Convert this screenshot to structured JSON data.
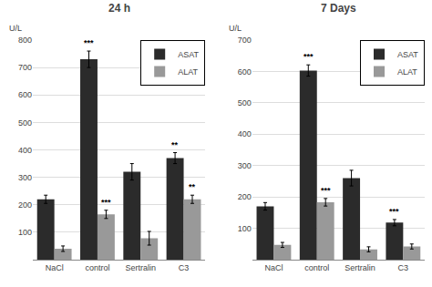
{
  "chart_data": [
    {
      "type": "bar",
      "title": "24 h",
      "ylabel": "U/L",
      "categories": [
        "NaCl",
        "control",
        "Sertralin",
        "C3"
      ],
      "series": [
        {
          "name": "ASAT",
          "color": "#2b2b2b",
          "values": [
            220,
            730,
            320,
            370
          ],
          "errors": [
            15,
            30,
            30,
            20
          ]
        },
        {
          "name": "ALAT",
          "color": "#999999",
          "values": [
            40,
            165,
            78,
            220
          ],
          "errors": [
            10,
            15,
            25,
            15
          ]
        }
      ],
      "annotations": [
        {
          "category": "control",
          "series": "ASAT",
          "text": "***"
        },
        {
          "category": "C3",
          "series": "ASAT",
          "text": "**"
        },
        {
          "category": "control",
          "series": "ALAT",
          "text": "***"
        },
        {
          "category": "C3",
          "series": "ALAT",
          "text": "**"
        }
      ],
      "ylim": [
        0,
        800
      ],
      "yticks": [
        100,
        200,
        300,
        400,
        500,
        600,
        700,
        800
      ],
      "grid": true,
      "legend": "upper right"
    },
    {
      "type": "bar",
      "title": "7 Days",
      "ylabel": "U/L",
      "categories": [
        "NaCl",
        "control",
        "Sertralin",
        "C3"
      ],
      "series": [
        {
          "name": "ASAT",
          "color": "#2b2b2b",
          "values": [
            170,
            603,
            260,
            118
          ],
          "errors": [
            12,
            18,
            25,
            10
          ]
        },
        {
          "name": "ALAT",
          "color": "#999999",
          "values": [
            47,
            183,
            33,
            42
          ],
          "errors": [
            8,
            12,
            8,
            8
          ]
        }
      ],
      "annotations": [
        {
          "category": "control",
          "series": "ASAT",
          "text": "***"
        },
        {
          "category": "C3",
          "series": "ASAT",
          "text": "***"
        },
        {
          "category": "control",
          "series": "ALAT",
          "text": "***"
        }
      ],
      "ylim": [
        0,
        700
      ],
      "yticks": [
        100,
        200,
        300,
        400,
        500,
        600,
        700
      ],
      "grid": true,
      "legend": "upper right"
    }
  ]
}
